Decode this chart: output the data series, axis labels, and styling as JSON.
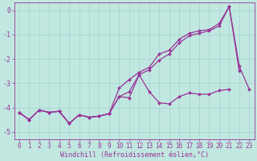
{
  "xlabel": "Windchill (Refroidissement éolien,°C)",
  "bg_color": "#c0e8e0",
  "line_color": "#993399",
  "x": [
    0,
    1,
    2,
    3,
    4,
    5,
    6,
    7,
    8,
    9,
    10,
    11,
    12,
    13,
    14,
    15,
    16,
    17,
    18,
    19,
    20,
    21,
    22,
    23
  ],
  "line1": [
    -4.2,
    -4.5,
    -4.1,
    -4.2,
    -4.15,
    -4.65,
    -4.3,
    -4.4,
    -4.35,
    -4.25,
    -3.55,
    -3.6,
    -2.65,
    -3.35,
    -3.8,
    -3.85,
    -3.55,
    -3.4,
    -3.45,
    -3.45,
    -3.3,
    -3.25,
    null,
    null
  ],
  "line2": [
    -4.2,
    -4.5,
    -4.1,
    -4.2,
    -4.15,
    -4.65,
    -4.3,
    -4.4,
    -4.35,
    -4.25,
    -3.2,
    -2.85,
    -2.55,
    -2.35,
    -1.8,
    -1.65,
    -1.2,
    -0.95,
    -0.85,
    -0.8,
    -0.55,
    0.15,
    -2.5,
    null
  ],
  "line3": [
    -4.2,
    -4.5,
    -4.1,
    -4.2,
    -4.15,
    -4.65,
    -4.3,
    -4.4,
    -4.35,
    -4.25,
    -3.55,
    -3.35,
    -2.65,
    -2.45,
    -2.05,
    -1.8,
    -1.35,
    -1.05,
    -0.95,
    -0.85,
    -0.65,
    0.15,
    -2.3,
    -3.25
  ],
  "ylim": [
    -5.3,
    0.3
  ],
  "xlim": [
    -0.5,
    23.5
  ],
  "yticks": [
    0,
    -1,
    -2,
    -3,
    -4,
    -5
  ],
  "xticks": [
    0,
    1,
    2,
    3,
    4,
    5,
    6,
    7,
    8,
    9,
    10,
    11,
    12,
    13,
    14,
    15,
    16,
    17,
    18,
    19,
    20,
    21,
    22,
    23
  ],
  "grid_color": "#a0cccc",
  "tick_fontsize": 5.5,
  "xlabel_fontsize": 6.0,
  "marker": "D",
  "markersize": 2.0,
  "linewidth": 0.9
}
